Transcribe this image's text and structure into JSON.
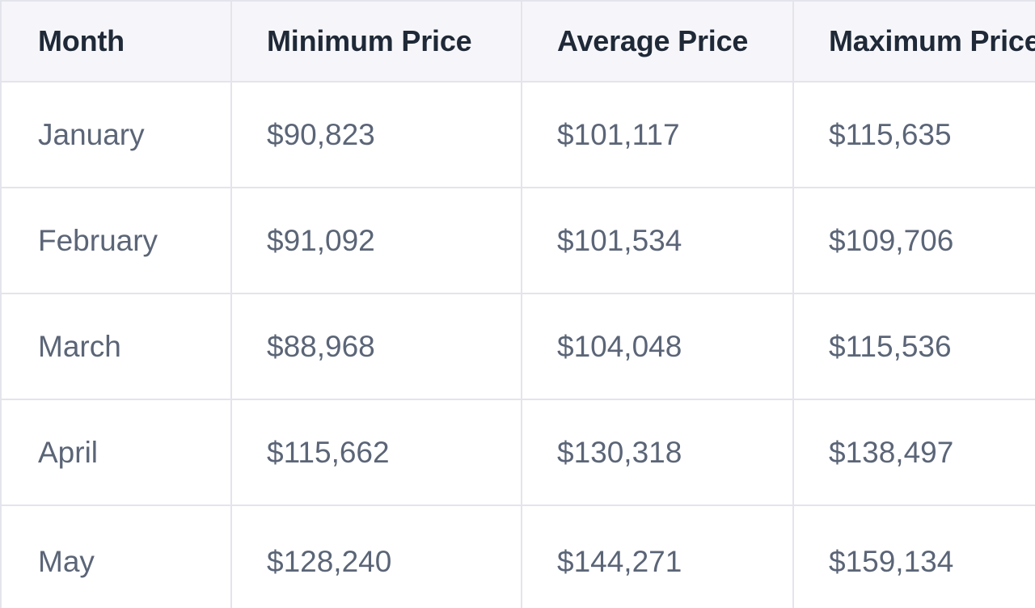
{
  "table": {
    "headers": [
      "Month",
      "Minimum Price",
      "Average Price",
      "Maximum Price"
    ],
    "rows": [
      [
        "January",
        "$90,823",
        "$101,117",
        "$115,635"
      ],
      [
        "February",
        "$91,092",
        "$101,534",
        "$109,706"
      ],
      [
        "March",
        "$88,968",
        "$104,048",
        "$115,536"
      ],
      [
        "April",
        "$115,662",
        "$130,318",
        "$138,497"
      ],
      [
        "May",
        "$128,240",
        "$144,271",
        "$159,134"
      ]
    ]
  }
}
